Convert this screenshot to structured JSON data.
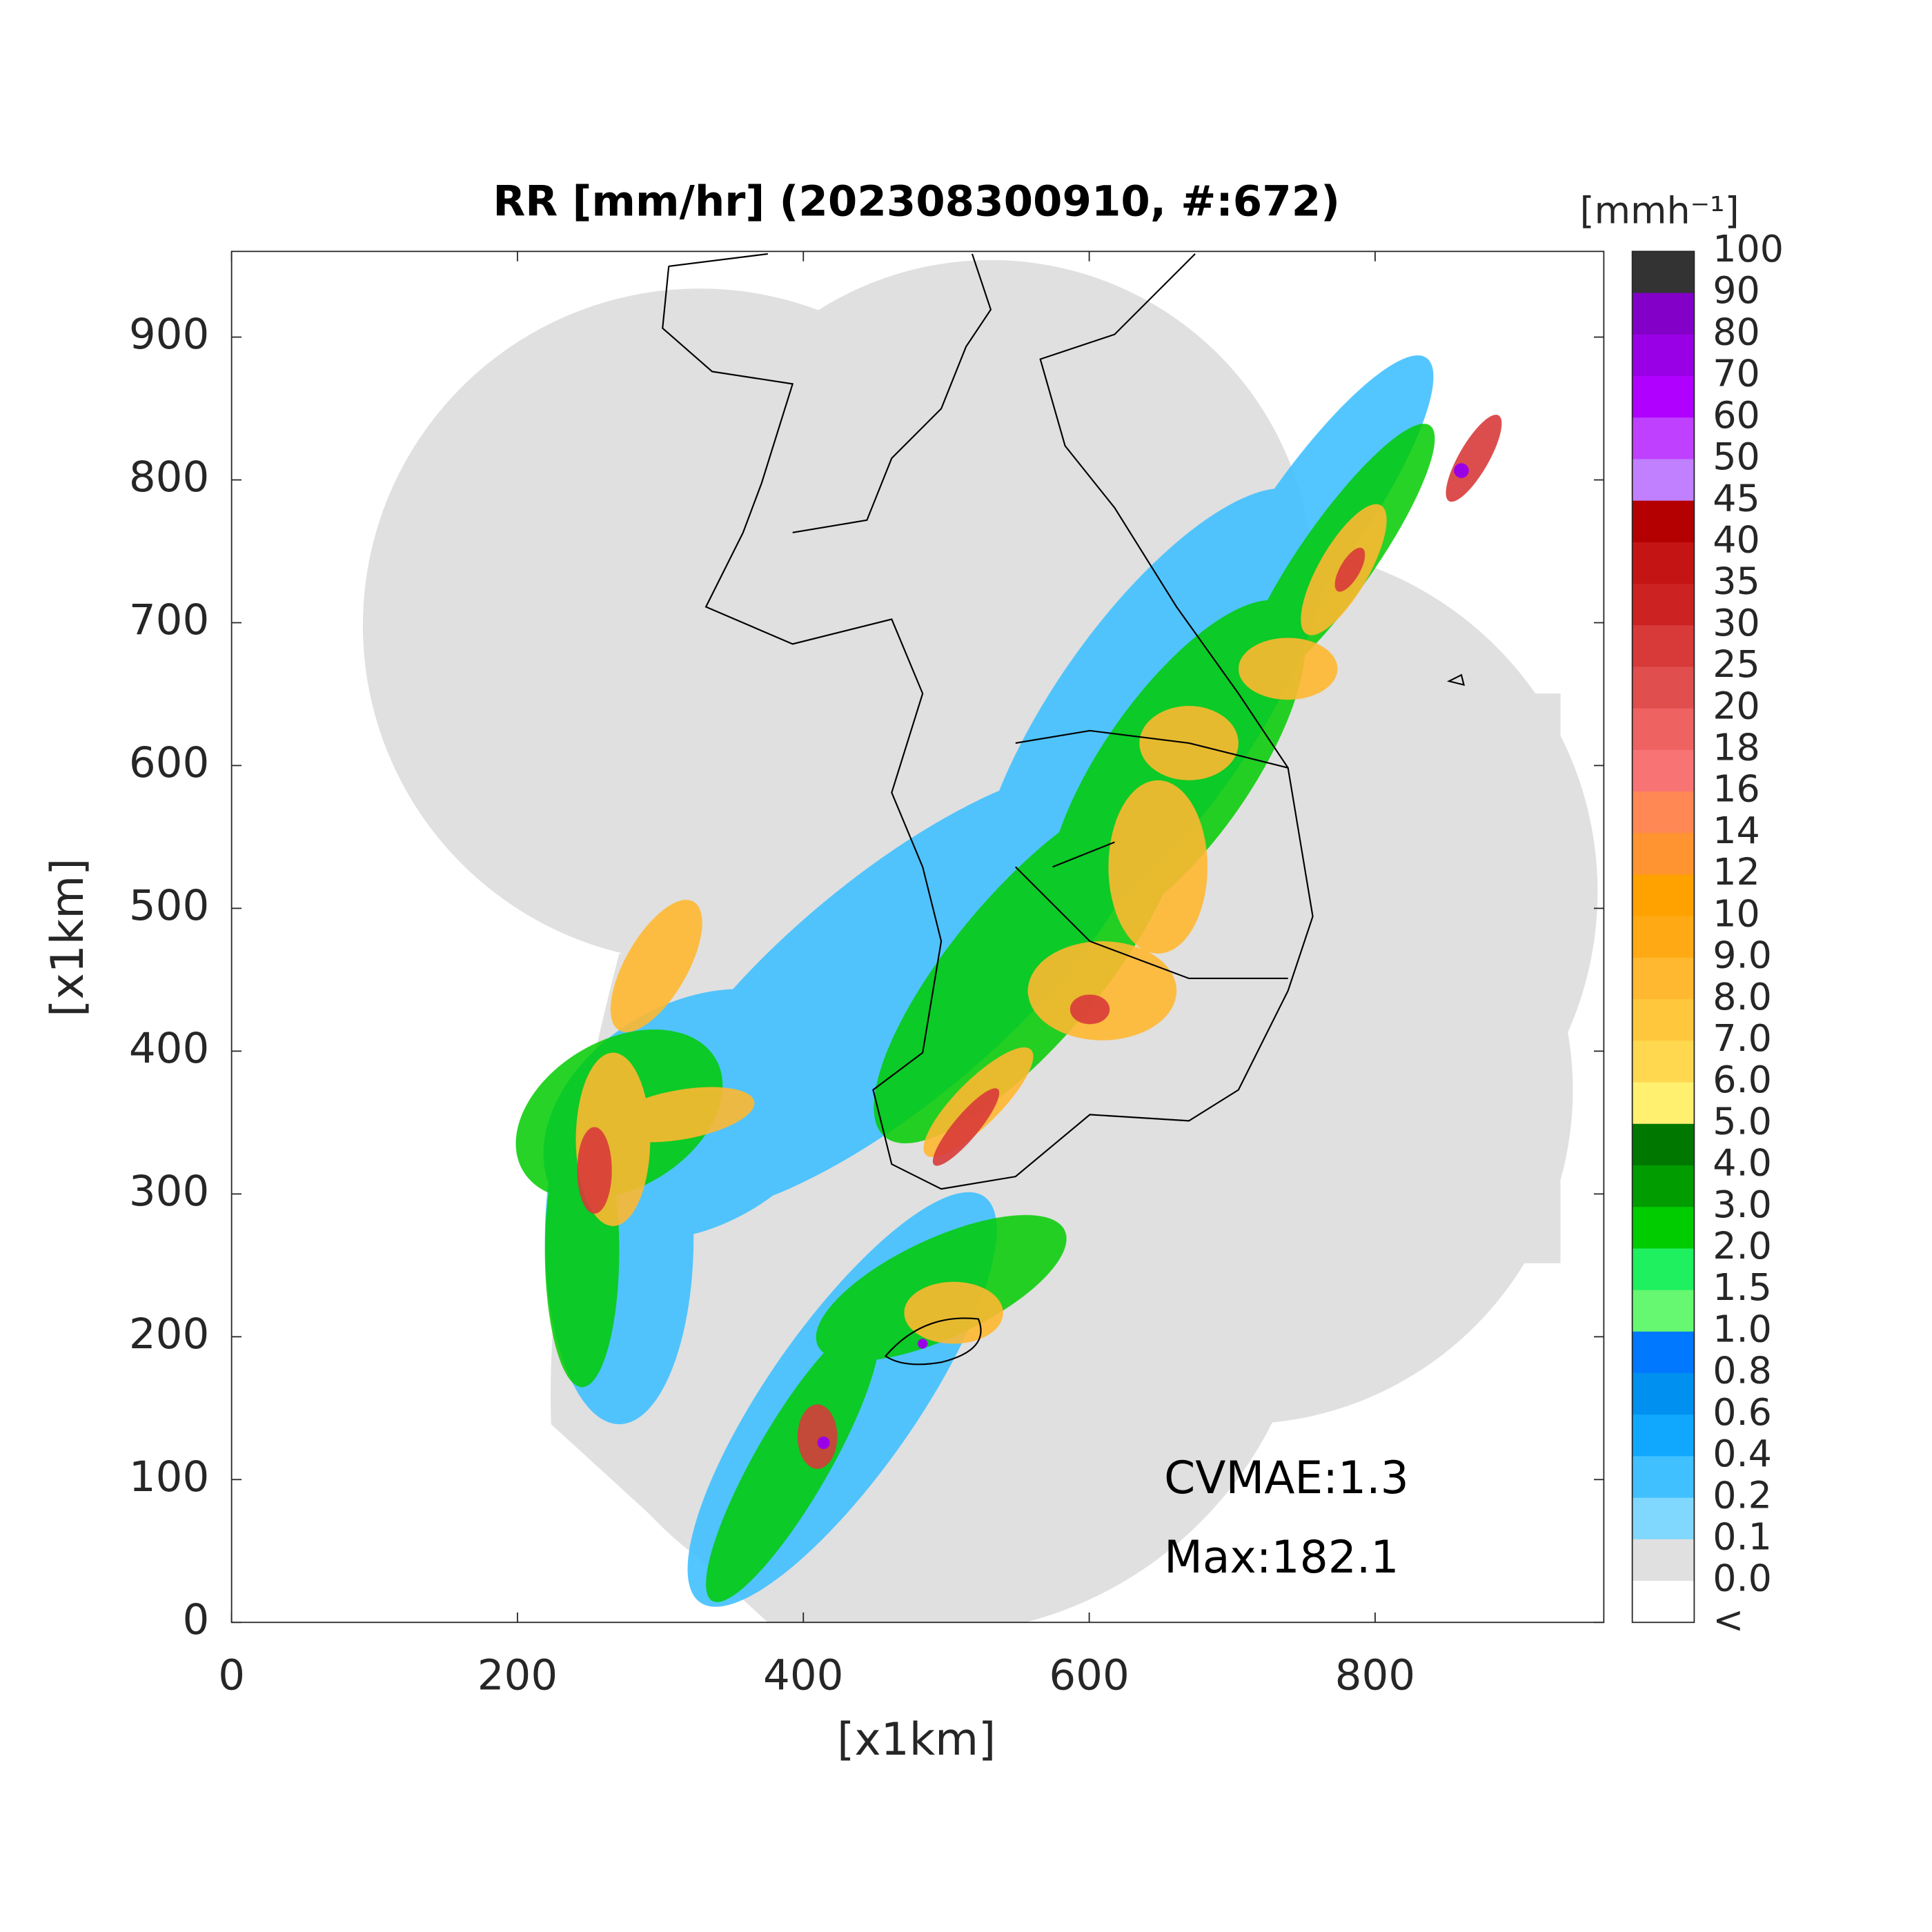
{
  "chart_data": {
    "type": "heatmap",
    "title": "RR [mm/hr] (202308300910, #:672)",
    "xlabel": "[x1km]",
    "ylabel": "[x1km]",
    "xlim": [
      0,
      960
    ],
    "ylim": [
      0,
      960
    ],
    "xticks": [
      0,
      200,
      400,
      600,
      800
    ],
    "yticks": [
      0,
      100,
      200,
      300,
      400,
      500,
      600,
      700,
      800,
      900
    ],
    "colorbar": {
      "title": "[mmh⁻¹]",
      "labels": [
        "100",
        "90",
        "80",
        "70",
        "60",
        "50",
        "45",
        "40",
        "35",
        "30",
        "25",
        "20",
        "18",
        "16",
        "14",
        "12",
        "10",
        "9.0",
        "8.0",
        "7.0",
        "6.0",
        "5.0",
        "4.0",
        "3.0",
        "2.0",
        "1.5",
        "1.0",
        "0.8",
        "0.6",
        "0.4",
        "0.2",
        "0.1",
        "0.0",
        "<"
      ],
      "colors": [
        "#333333",
        "#8200c8",
        "#9a00e6",
        "#b000ff",
        "#c040ff",
        "#c080ff",
        "#b40000",
        "#c41414",
        "#cc2222",
        "#d83a3a",
        "#e04e4e",
        "#ee6262",
        "#f87474",
        "#ff8855",
        "#ff9430",
        "#ffa200",
        "#ffaa14",
        "#ffb830",
        "#ffc83c",
        "#ffd850",
        "#fff070",
        "#007800",
        "#009c00",
        "#00cc00",
        "#1ef060",
        "#66f870",
        "#0078ff",
        "#0090f0",
        "#10a8ff",
        "#40c0ff",
        "#80d8ff",
        "#e0e0e0",
        "#ffffff"
      ]
    },
    "annotations": [
      "CVMAE:1.3",
      "Max:182.1"
    ]
  }
}
